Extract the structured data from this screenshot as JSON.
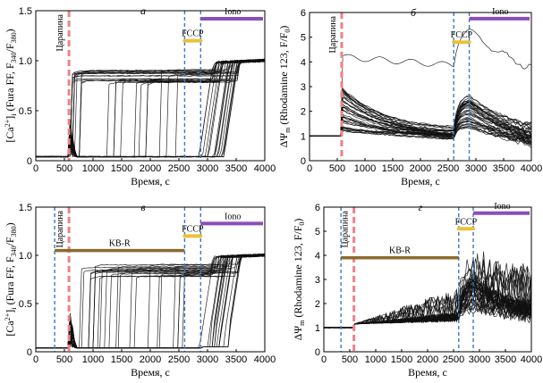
{
  "colors": {
    "scratch": "#f0808a",
    "fccp": "#e8c23a",
    "iono": "#8a4fb5",
    "kbr": "#8b6b2e",
    "marker_blue": "#3a78c8",
    "trace": "#111111"
  },
  "chart_data": [
    {
      "id": "a",
      "type": "line",
      "panel_letter": "а",
      "xlabel": "Время, с",
      "ylabel": "[Ca2+]i (Fura FF, F340/F380)",
      "xlim": [
        0,
        4000
      ],
      "ylim": [
        0,
        1.5
      ],
      "xticks": [
        "0",
        "500",
        "1000",
        "1500",
        "2000",
        "2500",
        "3000",
        "3500",
        "4000"
      ],
      "yticks": [
        "0",
        "0.5",
        "1.0",
        "1.5"
      ],
      "scratch_label": "Царапина",
      "scratch_time": 580,
      "fccp": {
        "label": "FCCP",
        "start": 2600,
        "end": 2880,
        "y": 1.2
      },
      "iono": {
        "label": "Iono",
        "start": 2880,
        "end": 4000,
        "y": 1.42
      },
      "blue_lines": [
        2600,
        2880
      ],
      "kbr": null,
      "trace_model": {
        "baseline": 0.04,
        "plateau": 0.99,
        "n": 42
      }
    },
    {
      "id": "b",
      "type": "line",
      "panel_letter": "б",
      "xlabel": "Время, с",
      "ylabel": "ΔΨm (Rhodamine 123, F/F0)",
      "xlim": [
        0,
        4000
      ],
      "ylim": [
        0,
        6
      ],
      "xticks": [
        "0",
        "500",
        "1000",
        "1500",
        "2000",
        "2500",
        "3000",
        "3500",
        "4000"
      ],
      "yticks": [
        "0",
        "1",
        "2",
        "3",
        "4",
        "5",
        "6"
      ],
      "scratch_label": "Царапина",
      "scratch_time": 580,
      "fccp": {
        "label": "FCCP",
        "start": 2600,
        "end": 2880,
        "y": 4.8
      },
      "iono": {
        "label": "Iono",
        "start": 2880,
        "end": 4000,
        "y": 5.75
      },
      "blue_lines": [
        2600,
        2880
      ],
      "kbr": null,
      "trace_model": {
        "baseline": 1.0,
        "n": 40
      }
    },
    {
      "id": "c",
      "type": "line",
      "panel_letter": "в",
      "xlabel": "Время, с",
      "ylabel": "[Ca2+]i (Fura FF, F340/F380)",
      "xlim": [
        0,
        4000
      ],
      "ylim": [
        0,
        1.5
      ],
      "xticks": [
        "0",
        "500",
        "1000",
        "1500",
        "2000",
        "2500",
        "3000",
        "3500",
        "4000"
      ],
      "yticks": [
        "0",
        "0.5",
        "1.0",
        "1.5"
      ],
      "scratch_label": "Царапина",
      "scratch_time": 580,
      "fccp": {
        "label": "FCCP",
        "start": 2600,
        "end": 2880,
        "y": 1.2
      },
      "iono": {
        "label": "Iono",
        "start": 2880,
        "end": 4000,
        "y": 1.33
      },
      "blue_lines": [
        330,
        2600,
        2880
      ],
      "kbr": {
        "label": "KB-R",
        "start": 330,
        "end": 2600,
        "y": 1.05
      },
      "trace_model": {
        "baseline": 0.04,
        "plateau": 0.99,
        "n": 40
      }
    },
    {
      "id": "d",
      "type": "line",
      "panel_letter": "г",
      "xlabel": "Время, с",
      "ylabel": "ΔΨm (Rhodamine 123, F/F0)",
      "xlim": [
        0,
        4000
      ],
      "ylim": [
        0,
        6
      ],
      "xticks": [
        "0",
        "500",
        "1000",
        "1500",
        "2000",
        "2500",
        "3000",
        "3500",
        "4000"
      ],
      "yticks": [
        "0",
        "1",
        "2",
        "3",
        "4",
        "5",
        "6"
      ],
      "scratch_label": "Царапина",
      "scratch_time": 580,
      "fccp": {
        "label": "FCCP",
        "start": 2600,
        "end": 2880,
        "y": 5.1
      },
      "iono": {
        "label": "Iono",
        "start": 2880,
        "end": 4000,
        "y": 5.75
      },
      "blue_lines": [
        330,
        2600,
        2880
      ],
      "kbr": {
        "label": "KB-R",
        "start": 330,
        "end": 2600,
        "y": 3.9
      },
      "trace_model": {
        "baseline": 1.0,
        "n": 40
      }
    }
  ]
}
